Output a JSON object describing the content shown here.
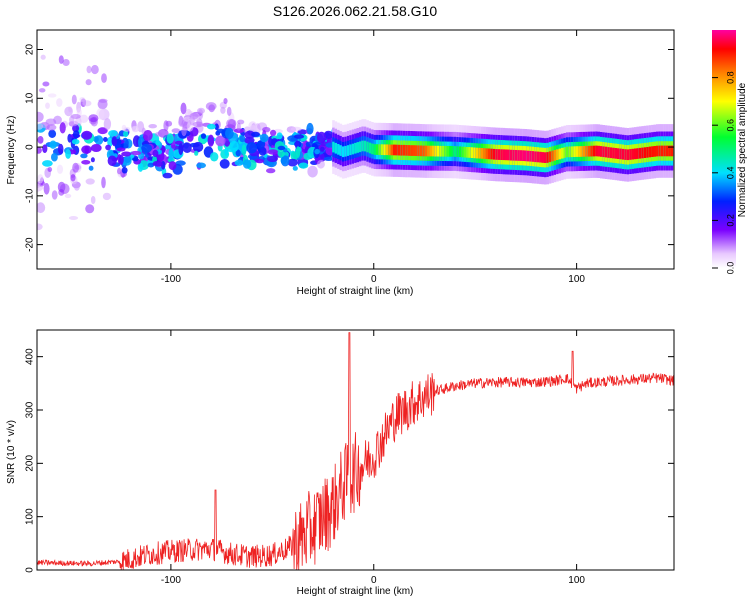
{
  "figure_title": "S126.2026.062.21.58.G10",
  "chart_data": [
    {
      "type": "heatmap",
      "title": "S126.2026.062.21.58.G10",
      "xlabel": "Height of straight line (km)",
      "ylabel": "Frequency (Hz)",
      "xlim": [
        -166,
        148
      ],
      "ylim": [
        -25,
        24
      ],
      "xticks": [
        -100,
        0,
        100
      ],
      "yticks": [
        -20,
        -10,
        0,
        10,
        20
      ],
      "colorbar": {
        "label": "Normalized spectral amplitude",
        "range": [
          0,
          1
        ],
        "ticks": [
          0.0,
          0.2,
          0.4,
          0.6,
          0.8
        ]
      },
      "ridge": {
        "description_points_x": [
          -150,
          -120,
          -100,
          -80,
          -60,
          -40,
          -25,
          -15,
          -5,
          0,
          10,
          25,
          40,
          60,
          75,
          85,
          95,
          110,
          125,
          140,
          148
        ],
        "center_freq_hz": [
          0,
          -1,
          -2,
          0.5,
          -1,
          -1,
          1,
          -1,
          0.3,
          -0.5,
          -0.6,
          -0.8,
          -0.9,
          -1.5,
          -1.8,
          -2.2,
          -1.0,
          -0.8,
          -1.6,
          -0.8,
          -0.8
        ],
        "peak_amplitude": [
          0.3,
          0.5,
          0.5,
          0.5,
          0.5,
          0.55,
          0.45,
          0.4,
          0.45,
          0.5,
          0.9,
          0.85,
          0.5,
          0.95,
          0.98,
          0.95,
          0.6,
          0.95,
          0.95,
          0.9,
          0.9
        ]
      }
    },
    {
      "type": "line",
      "xlabel": "Height of straight line (km)",
      "ylabel": "SNR (10 * v/v)",
      "xlim": [
        -166,
        148
      ],
      "ylim": [
        0,
        450
      ],
      "xticks": [
        -100,
        0,
        100
      ],
      "yticks": [
        0,
        100,
        200,
        300,
        400
      ],
      "series": [
        {
          "name": "SNR",
          "color": "#ee2222",
          "x": [
            -166,
            -140,
            -125,
            -110,
            -100,
            -90,
            -80,
            -70,
            -60,
            -50,
            -40,
            -30,
            -20,
            -15,
            -10,
            -5,
            0,
            5,
            10,
            15,
            20,
            25,
            30,
            40,
            50,
            60,
            70,
            80,
            90,
            95,
            100,
            105,
            110,
            120,
            130,
            140,
            148
          ],
          "y": [
            14,
            12,
            16,
            30,
            35,
            38,
            40,
            30,
            25,
            28,
            45,
            80,
            120,
            160,
            180,
            200,
            215,
            250,
            285,
            300,
            315,
            325,
            335,
            345,
            350,
            352,
            352,
            352,
            355,
            360,
            340,
            350,
            352,
            355,
            358,
            360,
            355
          ]
        }
      ],
      "spikes": [
        {
          "x": -78,
          "y": 150
        },
        {
          "x": -12,
          "y": 445
        },
        {
          "x": 98,
          "y": 410
        }
      ]
    }
  ]
}
